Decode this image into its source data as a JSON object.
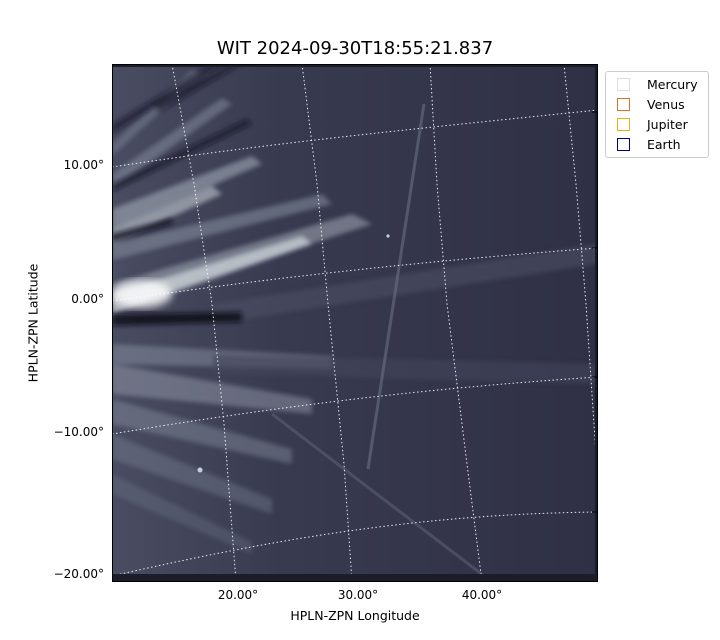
{
  "figure": {
    "title": "WIT 2024-09-30T18:55:21.837",
    "xlabel": "HPLN-ZPN Longitude",
    "ylabel": "HPLN-ZPN Latitude"
  },
  "axes": {
    "x_ticks": [
      "20.00°",
      "30.00°",
      "40.00°"
    ],
    "y_ticks": [
      "10.00°",
      "0.00°",
      "−10.00°",
      "−20.00°"
    ]
  },
  "legend": {
    "items": [
      {
        "label": "Mercury",
        "color": "#dddddd"
      },
      {
        "label": "Venus",
        "color": "#d9742b"
      },
      {
        "label": "Jupiter",
        "color": "#e0b020"
      },
      {
        "label": "Earth",
        "color": "#000080"
      }
    ]
  },
  "image": {
    "background_color": "#33344a",
    "streamer_color": "#dfe6ea"
  }
}
